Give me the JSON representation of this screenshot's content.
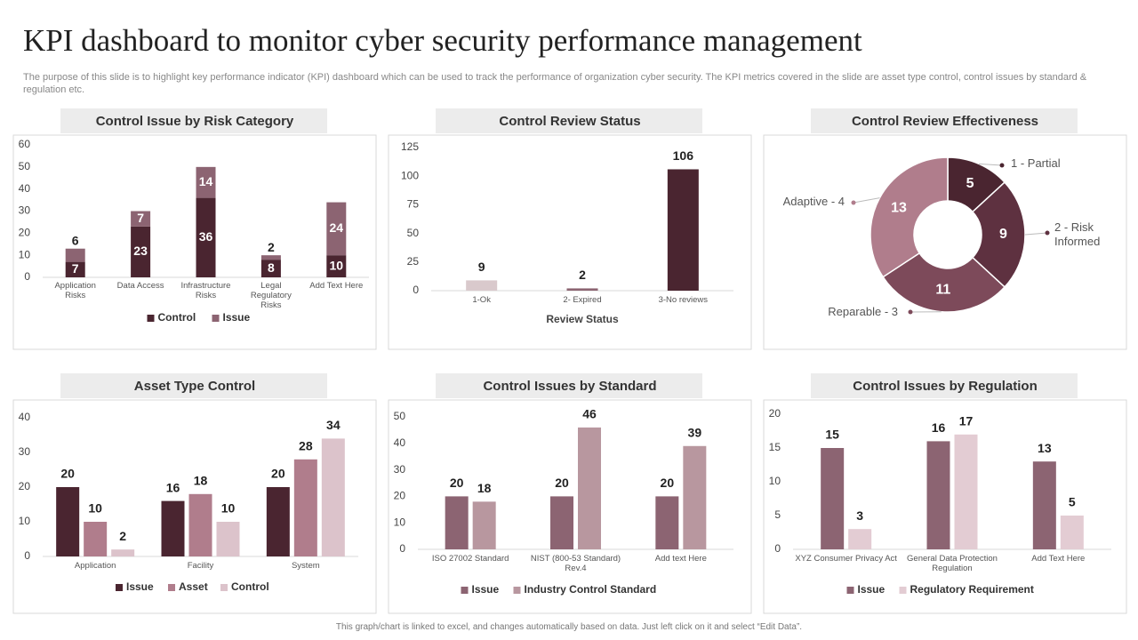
{
  "header": {
    "title": "KPI dashboard to monitor cyber security performance management",
    "subtitle": "The purpose of this slide is to highlight key performance indicator (KPI) dashboard which can be used to track the performance of organization cyber security. The KPI metrics covered in the slide are asset type control, control issues by standard & regulation etc."
  },
  "footer": "This graph/chart is linked to excel, and changes automatically based on data. Just left click on it and select “Edit Data”.",
  "chart_data": [
    {
      "type": "stacked_bar",
      "title": "Control  Issue by Risk Category",
      "categories": [
        "Application Risks",
        "Data Access",
        "Infrastructure Risks",
        "Legal Regulatory Risks",
        "Add Text Here"
      ],
      "series": [
        {
          "name": "Control",
          "color": "#4a2530",
          "values": [
            7,
            23,
            36,
            8,
            10
          ]
        },
        {
          "name": "Issue",
          "color": "#8c6472",
          "values": [
            6,
            7,
            14,
            2,
            24
          ]
        }
      ],
      "ylim": [
        0,
        60
      ],
      "yticks": [
        0,
        10,
        20,
        30,
        40,
        50,
        60
      ],
      "grid": false
    },
    {
      "type": "bar",
      "title": "Control  Review Status",
      "categories": [
        "1-Ok",
        "2- Expired",
        "3-No reviews"
      ],
      "values": [
        9,
        2,
        106
      ],
      "colors": [
        "#d9c9cc",
        "#8c6472",
        "#4a2530"
      ],
      "x_label": "Review Status",
      "ylim": [
        0,
        125
      ],
      "yticks": [
        0,
        25,
        50,
        75,
        100,
        125
      ],
      "grid": false
    },
    {
      "type": "donut",
      "title": "Control  Review Effectiveness",
      "categories": [
        "1 - Partial",
        "2 - Risk Informed",
        "Reparable  - 3",
        "Adaptive  - 4"
      ],
      "values": [
        5,
        9,
        11,
        13
      ],
      "colors": [
        "#4a2530",
        "#5e3140",
        "#7d4a5a",
        "#b07d8c"
      ]
    },
    {
      "type": "grouped_bar",
      "title": "Asset Type Control",
      "categories": [
        "Application",
        "Facility",
        "System"
      ],
      "series": [
        {
          "name": "Issue",
          "color": "#4a2530",
          "values": [
            20,
            16,
            20
          ]
        },
        {
          "name": "Asset",
          "color": "#b07d8c",
          "values": [
            10,
            18,
            28
          ]
        },
        {
          "name": "Control",
          "color": "#dcc3cb",
          "values": [
            2,
            10,
            34
          ]
        }
      ],
      "ylim": [
        0,
        40
      ],
      "yticks": [
        0,
        10,
        20,
        30,
        40
      ],
      "grid": false
    },
    {
      "type": "grouped_bar",
      "title": "Control  Issues by Standard",
      "categories": [
        "ISO 27002 Standard",
        "NIST (800-53 Standard) Rev.4",
        "Add text Here"
      ],
      "series": [
        {
          "name": "Issue",
          "color": "#8c6472",
          "values": [
            20,
            20,
            20
          ]
        },
        {
          "name": "Industry Control Standard",
          "color": "#b8979f",
          "values": [
            18,
            46,
            39
          ]
        }
      ],
      "ylim": [
        0,
        50
      ],
      "yticks": [
        0,
        10,
        20,
        30,
        40,
        50
      ],
      "grid": false
    },
    {
      "type": "grouped_bar",
      "title": "Control  Issues by Regulation",
      "categories": [
        "XYZ Consumer Privacy Act",
        "General Data Protection Regulation",
        "Add Text Here"
      ],
      "series": [
        {
          "name": "Issue",
          "color": "#8c6472",
          "values": [
            15,
            16,
            13
          ]
        },
        {
          "name": "Regulatory Requirement",
          "color": "#e3ccd3",
          "values": [
            3,
            17,
            5
          ]
        }
      ],
      "ylim": [
        0,
        20
      ],
      "yticks": [
        0,
        5,
        10,
        15,
        20
      ],
      "grid": false
    }
  ]
}
